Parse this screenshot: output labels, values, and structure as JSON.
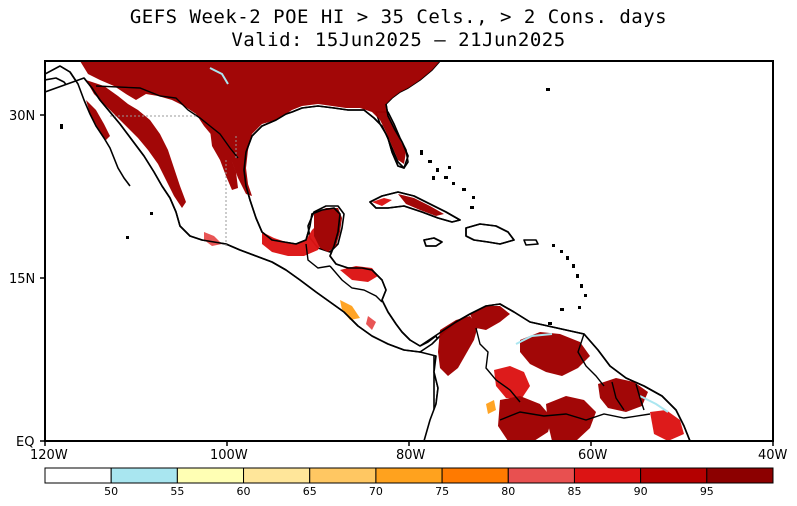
{
  "title_line1": "GEFS Week-2 POE HI > 35 Cels., > 2 Cons. days",
  "title_line2": "Valid: 15Jun2025 — 21Jun2025",
  "lat_labels": [
    "30N",
    "15N",
    "EQ"
  ],
  "lon_labels": [
    "120W",
    "100W",
    "80W",
    "60W",
    "40W"
  ],
  "colorbar": {
    "labels": [
      "50",
      "55",
      "60",
      "65",
      "70",
      "75",
      "80",
      "85",
      "90",
      "95"
    ],
    "colors": [
      "#ffffff",
      "#a9e6f0",
      "#ffffb4",
      "#ffe69a",
      "#ffc762",
      "#ffa21e",
      "#ff7a00",
      "#e85050",
      "#dc1414",
      "#b40000",
      "#8c0000"
    ]
  },
  "map_colors": {
    "ocean": "#ffffff",
    "land": "#ffffff",
    "coast": "#000000",
    "hot_dark": "#a00000",
    "hot_mid": "#dc1414",
    "hot_light": "#e85050",
    "warm": "#ffa21e",
    "cool": "#a9e6f0"
  }
}
